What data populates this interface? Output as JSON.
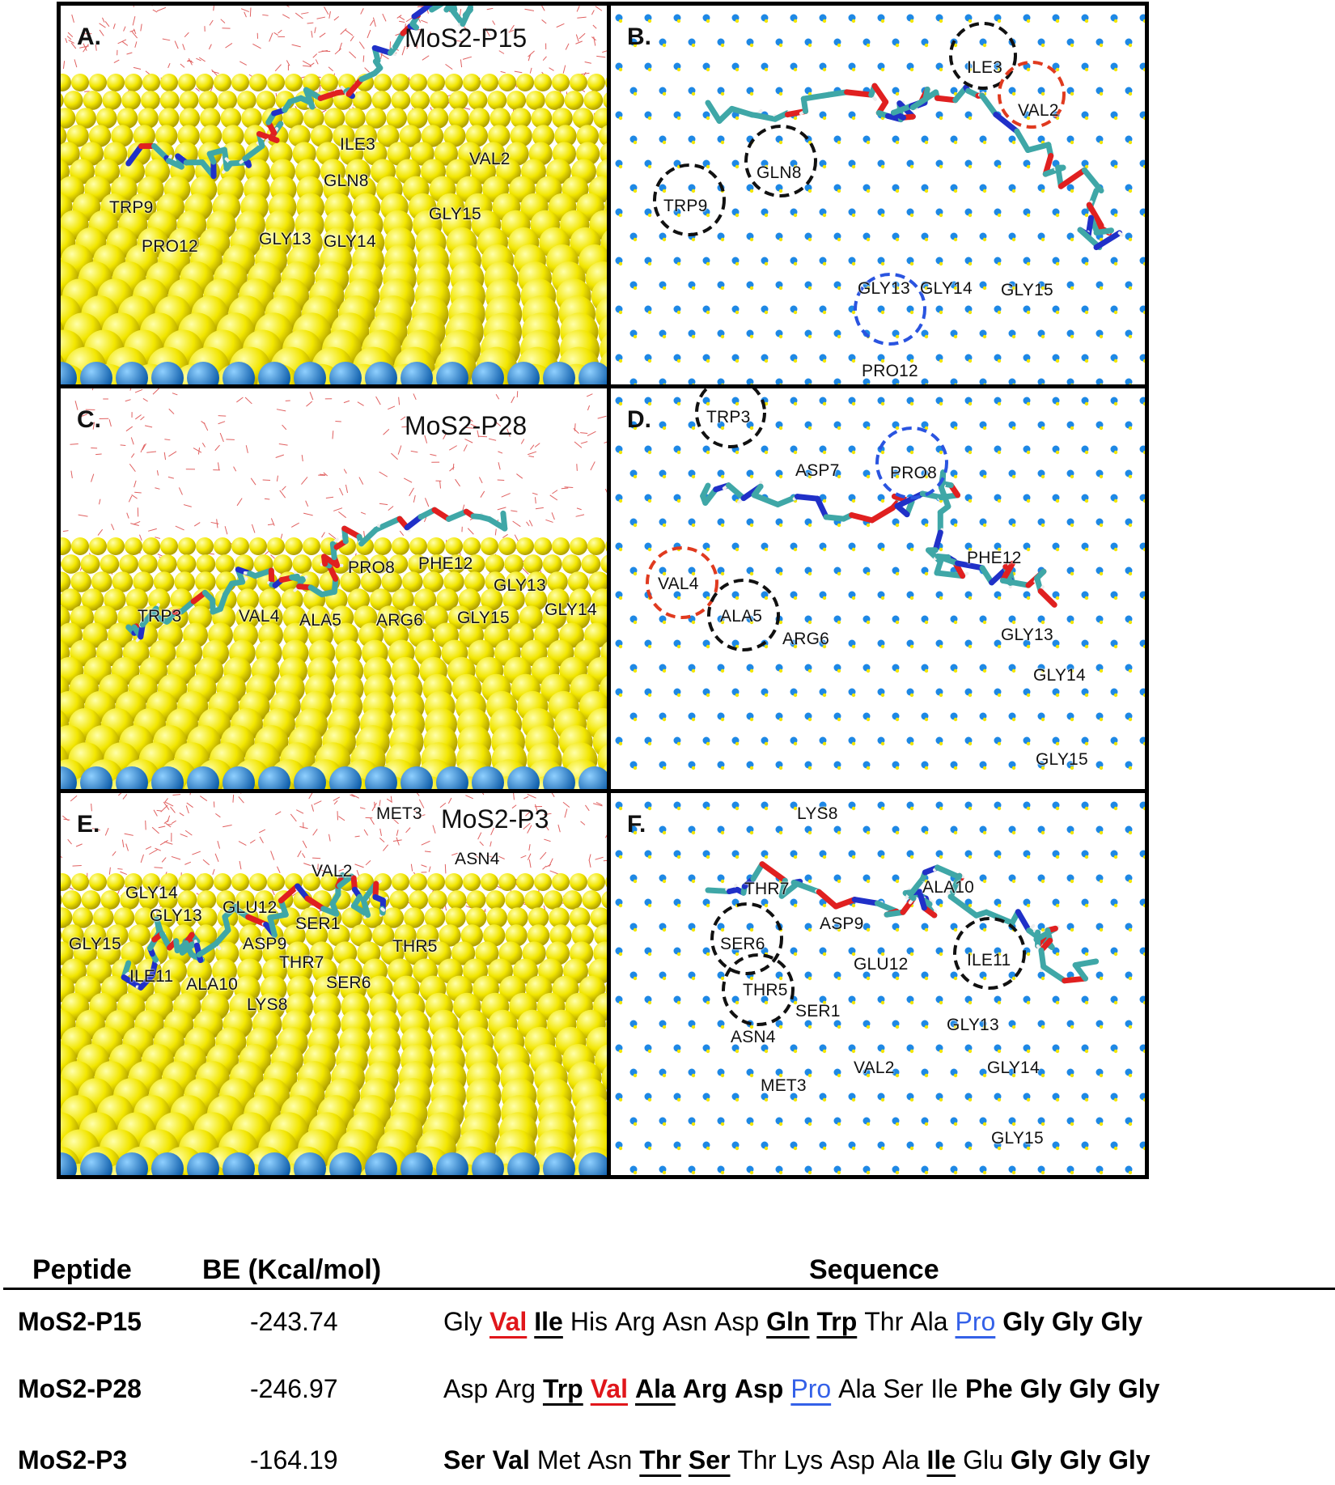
{
  "figure": {
    "panels": [
      {
        "id": "A",
        "label": "A.",
        "title": "MoS2-P15",
        "view": "side",
        "residues": [
          "ILE3",
          "VAL2",
          "GLN8",
          "TRP9",
          "GLY15",
          "GLY13",
          "GLY14",
          "PRO12"
        ]
      },
      {
        "id": "B",
        "label": "B.",
        "title": "",
        "view": "top",
        "residues": [
          "ILE3",
          "VAL2",
          "GLN8",
          "TRP9",
          "GLY13",
          "GLY14",
          "GLY15",
          "PRO12"
        ]
      },
      {
        "id": "C",
        "label": "C.",
        "title": "MoS2-P28",
        "view": "side",
        "residues": [
          "PRO8",
          "PHE12",
          "GLY13",
          "GLY14",
          "TRP3",
          "VAL4",
          "ALA5",
          "ARG6",
          "GLY15"
        ]
      },
      {
        "id": "D",
        "label": "D.",
        "title": "",
        "view": "top",
        "residues": [
          "TRP3",
          "ASP7",
          "PRO8",
          "PHE12",
          "VAL4",
          "ALA5",
          "ARG6",
          "GLY13",
          "GLY14",
          "GLY15"
        ]
      },
      {
        "id": "E",
        "label": "E.",
        "title": "MoS2-P3",
        "view": "side",
        "residues": [
          "MET3",
          "ASN4",
          "VAL2",
          "GLY14",
          "GLY13",
          "GLU12",
          "SER1",
          "GLY15",
          "ASP9",
          "THR5",
          "THR7",
          "ILE11",
          "ALA10",
          "SER6",
          "LYS8"
        ]
      },
      {
        "id": "F",
        "label": "F.",
        "title": "",
        "view": "top",
        "residues": [
          "LYS8",
          "THR7",
          "ALA10",
          "ASP9",
          "SER6",
          "ILE11",
          "GLU12",
          "THR5",
          "SER1",
          "ASN4",
          "GLY13",
          "VAL2",
          "GLY14",
          "MET3",
          "GLY15"
        ]
      }
    ],
    "colors": {
      "sulfur": "#f2e600",
      "molybdenum": "#1e88e5",
      "carbon": "#3fa7a7",
      "oxygen": "#e02020",
      "nitrogen": "#2030c8",
      "hydrogen": "#eeeeee",
      "water": "#e06060",
      "circle_black": "#111111",
      "circle_red": "#e03a1f",
      "circle_blue": "#2a54e0"
    }
  },
  "table": {
    "headers": {
      "peptide": "Peptide",
      "be": "BE (Kcal/mol)",
      "sequence": "Sequence"
    },
    "rows": [
      {
        "peptide": "MoS2-P15",
        "be": "-243.74",
        "sequence": [
          {
            "aa": "Gly"
          },
          {
            "aa": "Val",
            "bold": true,
            "u": true,
            "color": "red"
          },
          {
            "aa": "Ile",
            "bold": true,
            "u": true
          },
          {
            "aa": "His"
          },
          {
            "aa": "Arg"
          },
          {
            "aa": "Asn"
          },
          {
            "aa": "Asp"
          },
          {
            "aa": "Gln",
            "bold": true,
            "u": true
          },
          {
            "aa": "Trp",
            "bold": true,
            "u": true
          },
          {
            "aa": "Thr"
          },
          {
            "aa": "Ala"
          },
          {
            "aa": "Pro",
            "u": true,
            "color": "blue"
          },
          {
            "aa": "Gly",
            "bold": true
          },
          {
            "aa": "Gly",
            "bold": true
          },
          {
            "aa": "Gly",
            "bold": true
          }
        ]
      },
      {
        "peptide": "MoS2-P28",
        "be": "-246.97",
        "sequence": [
          {
            "aa": "Asp"
          },
          {
            "aa": "Arg"
          },
          {
            "aa": "Trp",
            "bold": true,
            "u": true
          },
          {
            "aa": "Val",
            "bold": true,
            "u": true,
            "color": "red"
          },
          {
            "aa": "Ala",
            "bold": true,
            "u": true
          },
          {
            "aa": "Arg",
            "bold": true
          },
          {
            "aa": "Asp",
            "bold": true
          },
          {
            "aa": "Pro",
            "u": true,
            "color": "blue"
          },
          {
            "aa": "Ala"
          },
          {
            "aa": "Ser"
          },
          {
            "aa": "Ile"
          },
          {
            "aa": "Phe",
            "bold": true
          },
          {
            "aa": "Gly",
            "bold": true
          },
          {
            "aa": "Gly",
            "bold": true
          },
          {
            "aa": "Gly",
            "bold": true
          }
        ]
      },
      {
        "peptide": "MoS2-P3",
        "be": "-164.19",
        "sequence": [
          {
            "aa": "Ser",
            "bold": true
          },
          {
            "aa": "Val",
            "bold": true
          },
          {
            "aa": "Met"
          },
          {
            "aa": "Asn"
          },
          {
            "aa": "Thr",
            "bold": true,
            "u": true
          },
          {
            "aa": "Ser",
            "bold": true,
            "u": true
          },
          {
            "aa": "Thr"
          },
          {
            "aa": "Lys"
          },
          {
            "aa": "Asp"
          },
          {
            "aa": "Ala"
          },
          {
            "aa": "Ile",
            "bold": true,
            "u": true
          },
          {
            "aa": "Glu"
          },
          {
            "aa": "Gly",
            "bold": true
          },
          {
            "aa": "Gly",
            "bold": true
          },
          {
            "aa": "Gly",
            "bold": true
          }
        ]
      }
    ]
  }
}
